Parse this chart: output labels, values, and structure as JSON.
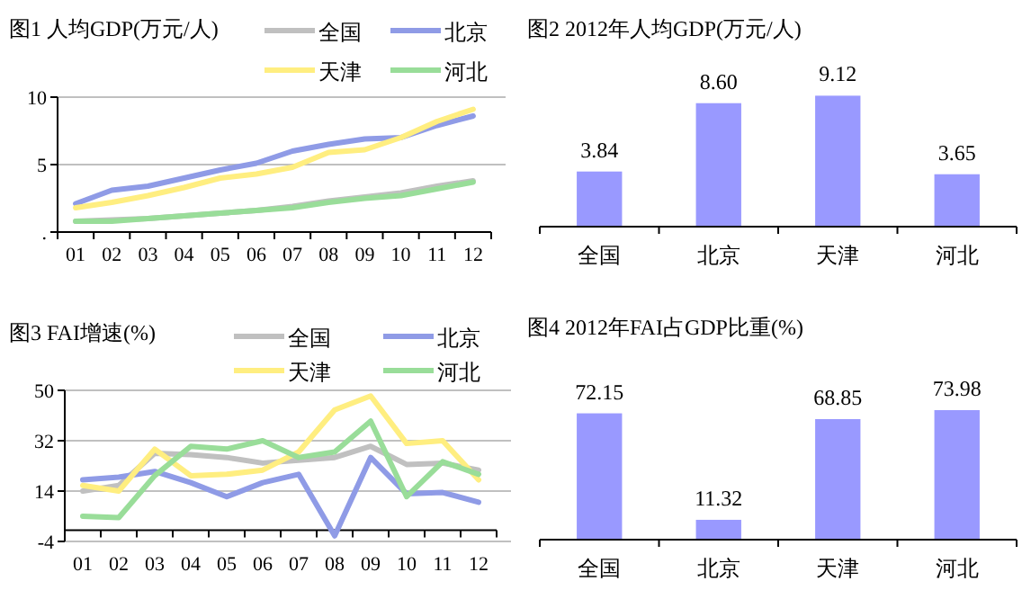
{
  "chart_data": [
    {
      "type": "line",
      "title": "图1 人均GDP(万元/人)",
      "categories": [
        "01",
        "02",
        "03",
        "04",
        "05",
        "06",
        "07",
        "08",
        "09",
        "10",
        "11",
        "12"
      ],
      "ylim": [
        0,
        10
      ],
      "yticks": [
        {
          "value": 0,
          "label": "."
        },
        5,
        10
      ],
      "grid": "y",
      "legend": "top",
      "series": [
        {
          "name": "全国",
          "color": "#c0c0c0",
          "values": [
            0.8,
            0.9,
            1.0,
            1.2,
            1.4,
            1.6,
            1.9,
            2.3,
            2.6,
            2.9,
            3.4,
            3.8
          ]
        },
        {
          "name": "北京",
          "color": "#8f9be6",
          "values": [
            2.1,
            3.1,
            3.4,
            4.0,
            4.6,
            5.1,
            6.0,
            6.5,
            6.9,
            7.0,
            7.9,
            8.6
          ]
        },
        {
          "name": "天津",
          "color": "#ffee80",
          "values": [
            1.8,
            2.2,
            2.7,
            3.3,
            4.0,
            4.3,
            4.8,
            5.9,
            6.1,
            7.0,
            8.2,
            9.1
          ]
        },
        {
          "name": "河北",
          "color": "#99dd99",
          "values": [
            0.8,
            0.8,
            1.0,
            1.2,
            1.4,
            1.6,
            1.8,
            2.2,
            2.5,
            2.7,
            3.2,
            3.7
          ]
        }
      ]
    },
    {
      "type": "bar",
      "title": "图2 2012年人均GDP(万元/人)",
      "categories": [
        "全国",
        "北京",
        "天津",
        "河北"
      ],
      "values": [
        3.84,
        8.6,
        9.12,
        3.65
      ],
      "value_labels": [
        "3.84",
        "8.60",
        "9.12",
        "3.65"
      ],
      "color": "#9999ff"
    },
    {
      "type": "line",
      "title": "图3 FAI增速(%)",
      "categories": [
        "01",
        "02",
        "03",
        "04",
        "05",
        "06",
        "07",
        "08",
        "09",
        "10",
        "11",
        "12"
      ],
      "ylim": [
        -4,
        50
      ],
      "yticks": [
        -4,
        14,
        32,
        50
      ],
      "grid": "y",
      "legend": "top",
      "series": [
        {
          "name": "全国",
          "color": "#c0c0c0",
          "values": [
            14,
            16,
            27.5,
            27,
            26,
            24,
            25,
            26,
            30,
            23.5,
            24,
            21.5
          ]
        },
        {
          "name": "北京",
          "color": "#8f9be6",
          "values": [
            18,
            19,
            21,
            17,
            12,
            17,
            20,
            -2,
            26,
            13,
            13.5,
            10
          ]
        },
        {
          "name": "天津",
          "color": "#ffee80",
          "values": [
            16,
            14,
            29,
            19.5,
            20,
            21.5,
            28,
            43,
            48,
            31,
            32,
            18
          ]
        },
        {
          "name": "河北",
          "color": "#99dd99",
          "values": [
            5,
            4.5,
            19.5,
            30,
            29,
            32,
            26,
            28,
            39,
            12,
            24.5,
            20
          ]
        }
      ]
    },
    {
      "type": "bar",
      "title": "图4 2012年FAI占GDP比重(%)",
      "categories": [
        "全国",
        "北京",
        "天津",
        "河北"
      ],
      "values": [
        72.15,
        11.32,
        68.85,
        73.98
      ],
      "value_labels": [
        "72.15",
        "11.32",
        "68.85",
        "73.98"
      ],
      "color": "#9999ff"
    }
  ]
}
